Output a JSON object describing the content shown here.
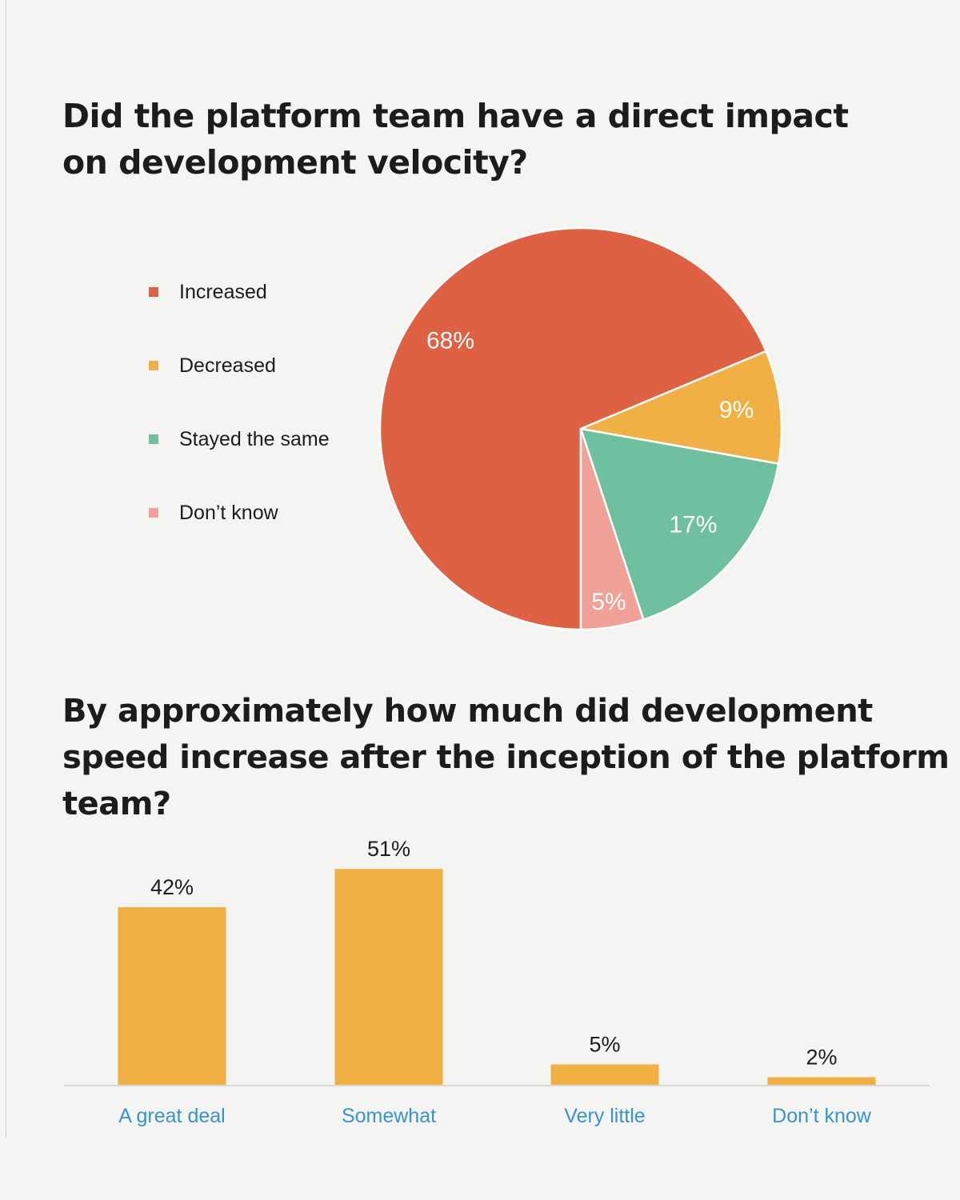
{
  "pie_title": "Did the platform team have a direct impact on development velocity?",
  "bar_title": "By approximately how much did development speed increase after the inception of the platform team?",
  "chart_data": [
    {
      "type": "pie",
      "title": "Did the platform team have a direct impact on development velocity?",
      "categories": [
        "Increased",
        "Decreased",
        "Stayed the same",
        "Don’t know"
      ],
      "values": [
        68,
        9,
        17,
        5
      ],
      "labels": [
        "68%",
        "9%",
        "17%",
        "5%"
      ],
      "colors": [
        "#dd6142",
        "#f0b044",
        "#6ec09f",
        "#f1a298"
      ],
      "legend": "left",
      "unit": "%"
    },
    {
      "type": "bar",
      "title": "By approximately how much did development speed increase after the inception of the platform team?",
      "categories": [
        "A great deal",
        "Somewhat",
        "Very little",
        "Don’t know"
      ],
      "values": [
        42,
        51,
        5,
        2
      ],
      "labels": [
        "42%",
        "51%",
        "5%",
        "2%"
      ],
      "ylim": [
        0,
        55
      ],
      "color": "#f0b044",
      "category_color": "#3a93c9",
      "grid": false,
      "unit": "%"
    }
  ]
}
